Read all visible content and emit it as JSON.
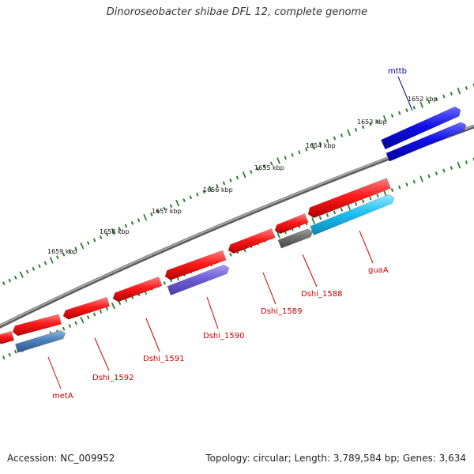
{
  "title": "Dinoroseobacter shibae DFL 12, complete genome",
  "footer": {
    "accession": "Accession: NC_009952",
    "summary": "Topology: circular; Length: 3,789,584 bp; Genes: 3,634"
  },
  "colors": {
    "background": "#ffffff",
    "backbone": "#888888",
    "tick": "#2e7d32",
    "red_gene": "#ff0000",
    "blue_gene": "#0000e0",
    "label_red": "#cc0000",
    "label_blue": "#00008b"
  },
  "kbp_ticks": [
    {
      "label": "1652 kbp"
    },
    {
      "label": "1653 kbp"
    },
    {
      "label": "1654 kbp"
    },
    {
      "label": "1655 kbp"
    },
    {
      "label": "1656 kbp"
    },
    {
      "label": "1657 kbp"
    },
    {
      "label": "1658 kbp"
    },
    {
      "label": "1659 kbp"
    }
  ],
  "gene_labels": [
    {
      "name": "mttb",
      "color": "#00008b"
    },
    {
      "name": "guaA",
      "color": "#cc0000"
    },
    {
      "name": "Dshi_1588",
      "color": "#cc0000"
    },
    {
      "name": "Dshi_1589",
      "color": "#cc0000"
    },
    {
      "name": "Dshi_1590",
      "color": "#cc0000"
    },
    {
      "name": "Dshi_1591",
      "color": "#cc0000"
    },
    {
      "name": "Dshi_1592",
      "color": "#cc0000"
    },
    {
      "name": "metA",
      "color": "#cc0000"
    }
  ]
}
